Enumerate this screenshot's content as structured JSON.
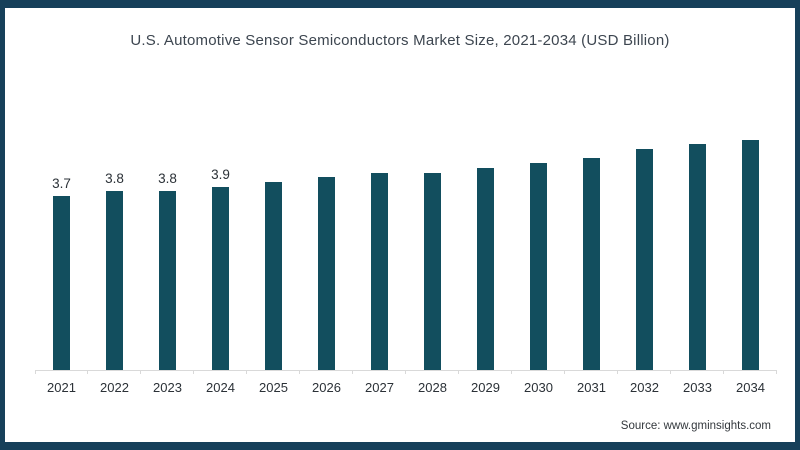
{
  "page": {
    "title": "U.S. Automotive Sensor Semiconductors Market Size, 2021-2034 (USD Billion)",
    "source_text": "Source: www.gminsights.com"
  },
  "colors": {
    "bar": "#124e5e",
    "frame": "#16405a",
    "title_text": "#3d4650",
    "axis_line": "#d9d9d9",
    "label_text": "#2b3137"
  },
  "chart_data": {
    "type": "bar",
    "title": "U.S. Automotive Sensor Semiconductors Market Size, 2021-2034 (USD Billion)",
    "unit": "USD Billion",
    "categories": [
      "2021",
      "2022",
      "2023",
      "2024",
      "2025",
      "2026",
      "2027",
      "2028",
      "2029",
      "2030",
      "2031",
      "2032",
      "2033",
      "2034"
    ],
    "values": [
      3.7,
      3.8,
      3.8,
      3.9,
      4.0,
      4.1,
      4.2,
      4.2,
      4.3,
      4.4,
      4.5,
      4.7,
      4.8,
      4.9
    ],
    "data_labels_shown": [
      "3.7",
      "3.8",
      "3.8",
      "3.9"
    ],
    "xlabel": "",
    "ylabel": "",
    "ylim": [
      0,
      5.3
    ],
    "grid": false,
    "legend": false,
    "bar_color": "#124e5e"
  }
}
